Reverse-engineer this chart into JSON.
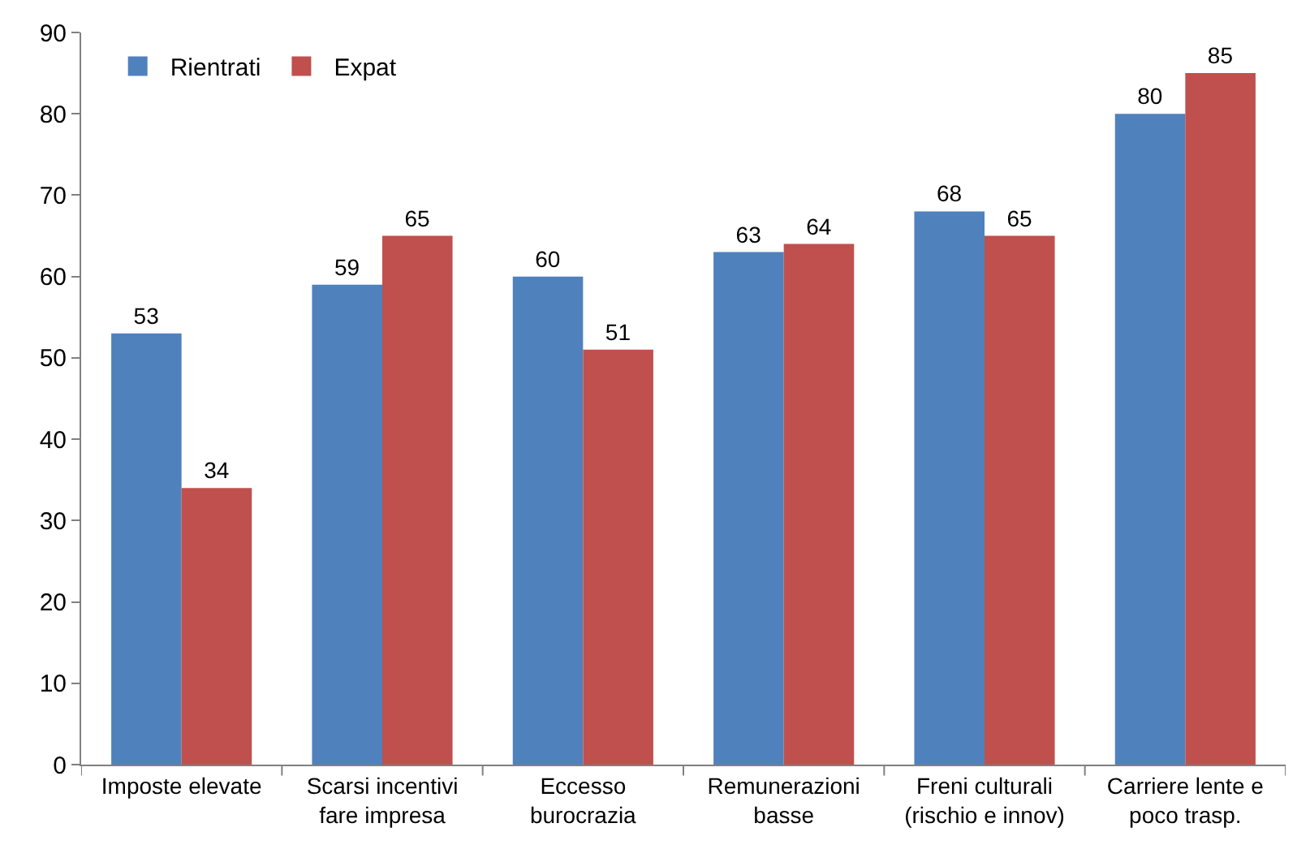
{
  "chart_data": {
    "type": "bar",
    "categories": [
      "Imposte elevate",
      "Scarsi incentivi\nfare impresa",
      "Eccesso\nburocrazia",
      "Remunerazioni\nbasse",
      "Freni culturali\n(rischio e innov)",
      "Carriere lente e\npoco trasp."
    ],
    "series": [
      {
        "name": "Rientrati",
        "color": "#4f81bd",
        "values": [
          53,
          59,
          60,
          63,
          68,
          80
        ]
      },
      {
        "name": "Expat",
        "color": "#c0504d",
        "values": [
          34,
          65,
          51,
          64,
          65,
          85
        ]
      }
    ],
    "ylim": [
      0,
      90
    ],
    "yticks": [
      0,
      10,
      20,
      30,
      40,
      50,
      60,
      70,
      80,
      90
    ],
    "grid": false,
    "legend": "top left",
    "data_labels": true
  }
}
